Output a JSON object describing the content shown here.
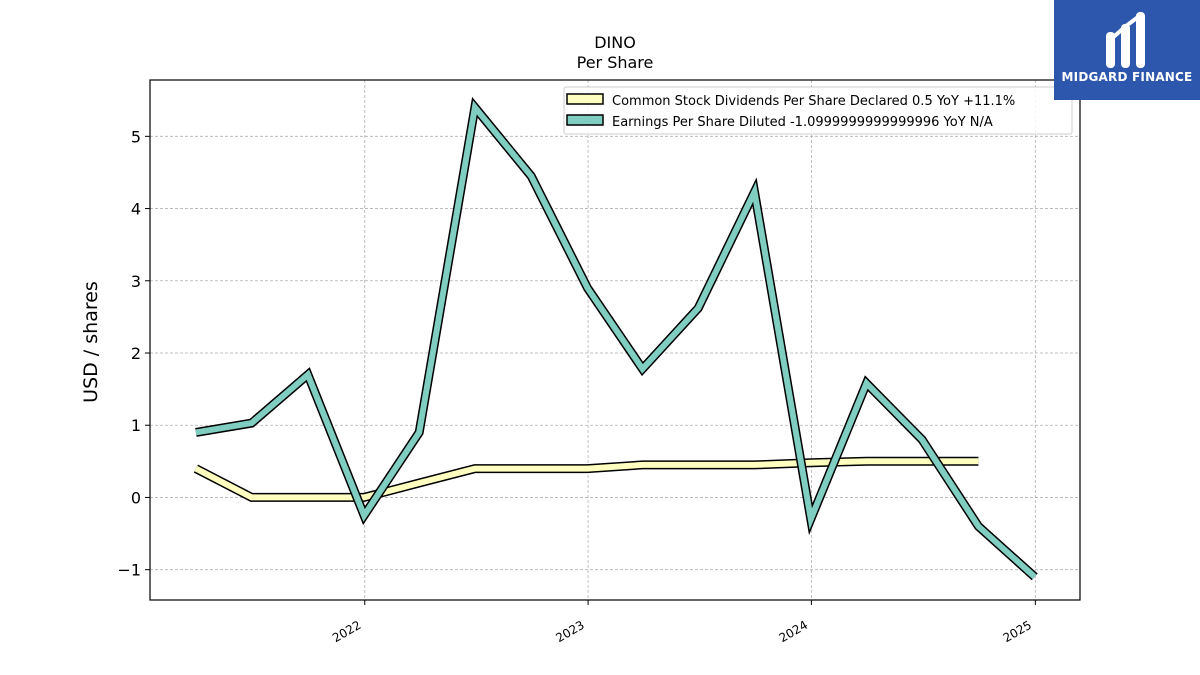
{
  "chart_data": {
    "type": "line",
    "title": "DINO",
    "subtitle": "Per  Share",
    "xlabel": "",
    "ylabel": "USD / shares",
    "x_ticks": [
      "2022",
      "2023",
      "2024",
      "2025"
    ],
    "y_ticks": [
      "−1",
      "0",
      "1",
      "2",
      "3",
      "4",
      "5"
    ],
    "xlim": [
      "2021-01-15",
      "2025-03-15"
    ],
    "ylim": [
      -1.42,
      5.78
    ],
    "grid": true,
    "legend_position": "top-right",
    "series": [
      {
        "name": "Common Stock Dividends Per Share Declared  0.5 YoY +11.1%",
        "color": "#ffffbf",
        "x": [
          "2021-03-31",
          "2021-06-30",
          "2021-09-30",
          "2021-12-31",
          "2022-03-31",
          "2022-06-30",
          "2022-09-30",
          "2022-12-31",
          "2023-03-31",
          "2023-06-30",
          "2023-09-30",
          "2023-12-31",
          "2024-03-31",
          "2024-06-30",
          "2024-09-30"
        ],
        "values": [
          0.4,
          0.0,
          0.0,
          0.0,
          0.2,
          0.4,
          0.4,
          0.4,
          0.45,
          0.45,
          0.45,
          0.48,
          0.5,
          0.5,
          0.5
        ]
      },
      {
        "name": "Earnings Per Share Diluted  -1.0999999999999996 YoY N/A",
        "color": "#80cdc1",
        "x": [
          "2021-03-31",
          "2021-06-30",
          "2021-09-30",
          "2021-12-31",
          "2022-03-31",
          "2022-06-30",
          "2022-09-30",
          "2022-12-31",
          "2023-03-31",
          "2023-06-30",
          "2023-09-30",
          "2023-12-31",
          "2024-03-31",
          "2024-06-30",
          "2024-09-30",
          "2024-12-31"
        ],
        "values": [
          0.9,
          1.03,
          1.7,
          -0.25,
          0.9,
          5.4,
          4.45,
          2.9,
          1.78,
          2.62,
          4.23,
          -0.3,
          1.58,
          0.8,
          -0.4,
          -1.1
        ]
      }
    ]
  },
  "logo": {
    "text": "MIDGARD FINANCE",
    "color": "#2d57ad"
  }
}
